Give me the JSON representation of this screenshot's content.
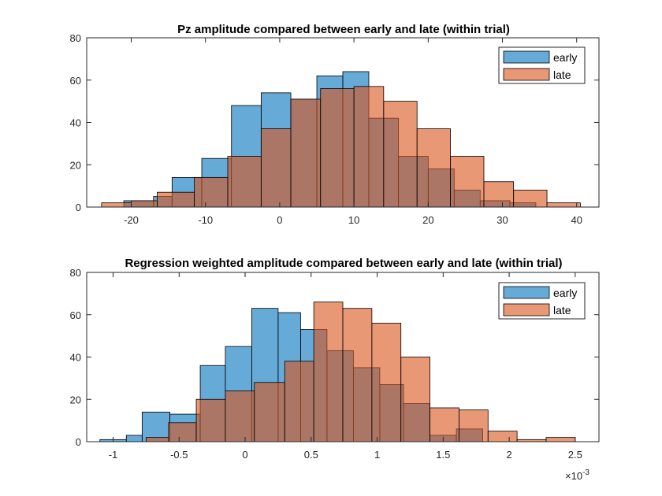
{
  "chart_data": [
    {
      "type": "histogram",
      "title": "Pz amplitude compared between early and late (within trial)",
      "xlim": [
        -26,
        43
      ],
      "ylim": [
        0,
        80
      ],
      "x_ticks": [
        -20,
        -10,
        0,
        10,
        20,
        30,
        40
      ],
      "x_tick_labels": [
        "-20",
        "-10",
        "0",
        "10",
        "20",
        "30",
        "40"
      ],
      "y_ticks": [
        0,
        20,
        40,
        60,
        80
      ],
      "y_tick_labels": [
        "0",
        "20",
        "40",
        "60",
        "80"
      ],
      "exponent_label": "",
      "legend": {
        "position": "top-right",
        "entries": [
          "early",
          "late"
        ]
      },
      "series": [
        {
          "name": "early",
          "color": "#0072BD",
          "bins": [
            {
              "x0": -21.0,
              "x1": -17.0,
              "count": 3
            },
            {
              "x0": -17.0,
              "x1": -14.5,
              "count": 5
            },
            {
              "x0": -14.5,
              "x1": -10.5,
              "count": 14
            },
            {
              "x0": -10.5,
              "x1": -6.5,
              "count": 23
            },
            {
              "x0": -6.5,
              "x1": -2.5,
              "count": 48
            },
            {
              "x0": -2.5,
              "x1": 1.5,
              "count": 54
            },
            {
              "x0": 1.5,
              "x1": 5.0,
              "count": 51
            },
            {
              "x0": 5.0,
              "x1": 8.5,
              "count": 62
            },
            {
              "x0": 8.5,
              "x1": 12.0,
              "count": 64
            },
            {
              "x0": 12.0,
              "x1": 16.0,
              "count": 42
            },
            {
              "x0": 16.0,
              "x1": 20.0,
              "count": 24
            },
            {
              "x0": 20.0,
              "x1": 23.5,
              "count": 18
            },
            {
              "x0": 23.5,
              "x1": 27.0,
              "count": 8
            },
            {
              "x0": 27.0,
              "x1": 31.0,
              "count": 3
            },
            {
              "x0": 31.0,
              "x1": 34.5,
              "count": 2
            }
          ]
        },
        {
          "name": "late",
          "color": "#D95319",
          "bins": [
            {
              "x0": -24.0,
              "x1": -20.0,
              "count": 2
            },
            {
              "x0": -20.0,
              "x1": -16.5,
              "count": 3
            },
            {
              "x0": -16.5,
              "x1": -11.5,
              "count": 7
            },
            {
              "x0": -11.5,
              "x1": -7.0,
              "count": 14
            },
            {
              "x0": -7.0,
              "x1": -2.5,
              "count": 24
            },
            {
              "x0": -2.5,
              "x1": 1.5,
              "count": 37
            },
            {
              "x0": 1.5,
              "x1": 5.5,
              "count": 51
            },
            {
              "x0": 5.5,
              "x1": 10.0,
              "count": 56
            },
            {
              "x0": 10.0,
              "x1": 14.0,
              "count": 57
            },
            {
              "x0": 14.0,
              "x1": 18.5,
              "count": 50
            },
            {
              "x0": 18.5,
              "x1": 23.0,
              "count": 37
            },
            {
              "x0": 23.0,
              "x1": 27.5,
              "count": 24
            },
            {
              "x0": 27.5,
              "x1": 31.5,
              "count": 12
            },
            {
              "x0": 31.5,
              "x1": 36.0,
              "count": 8
            },
            {
              "x0": 36.0,
              "x1": 40.5,
              "count": 2
            }
          ]
        }
      ]
    },
    {
      "type": "histogram",
      "title": "Regression weighted amplitude compared between early and late (within trial)",
      "xlim": [
        -1.2,
        2.68
      ],
      "ylim": [
        0,
        80
      ],
      "x_ticks": [
        -1,
        -0.5,
        0,
        0.5,
        1,
        1.5,
        2,
        2.5
      ],
      "x_tick_labels": [
        "-1",
        "-0.5",
        "0",
        "0.5",
        "1",
        "1.5",
        "2",
        "2.5"
      ],
      "y_ticks": [
        0,
        20,
        40,
        60,
        80
      ],
      "y_tick_labels": [
        "0",
        "20",
        "40",
        "60",
        "80"
      ],
      "exponent_label": "×10",
      "exponent_power": "-3",
      "legend": {
        "position": "top-right",
        "entries": [
          "early",
          "late"
        ]
      },
      "series": [
        {
          "name": "early",
          "color": "#0072BD",
          "bins": [
            {
              "x0": -1.1,
              "x1": -0.9,
              "count": 1
            },
            {
              "x0": -0.9,
              "x1": -0.78,
              "count": 3
            },
            {
              "x0": -0.78,
              "x1": -0.57,
              "count": 14
            },
            {
              "x0": -0.57,
              "x1": -0.34,
              "count": 13
            },
            {
              "x0": -0.34,
              "x1": -0.15,
              "count": 36
            },
            {
              "x0": -0.15,
              "x1": 0.05,
              "count": 45
            },
            {
              "x0": 0.05,
              "x1": 0.25,
              "count": 63
            },
            {
              "x0": 0.25,
              "x1": 0.42,
              "count": 61
            },
            {
              "x0": 0.42,
              "x1": 0.62,
              "count": 53
            },
            {
              "x0": 0.62,
              "x1": 0.82,
              "count": 43
            },
            {
              "x0": 0.82,
              "x1": 1.02,
              "count": 35
            },
            {
              "x0": 1.02,
              "x1": 1.2,
              "count": 27
            },
            {
              "x0": 1.2,
              "x1": 1.4,
              "count": 18
            },
            {
              "x0": 1.4,
              "x1": 1.6,
              "count": 3
            },
            {
              "x0": 1.6,
              "x1": 1.8,
              "count": 6
            }
          ]
        },
        {
          "name": "late",
          "color": "#D95319",
          "bins": [
            {
              "x0": -0.75,
              "x1": -0.58,
              "count": 2
            },
            {
              "x0": -0.58,
              "x1": -0.37,
              "count": 9
            },
            {
              "x0": -0.37,
              "x1": -0.15,
              "count": 20
            },
            {
              "x0": -0.15,
              "x1": 0.07,
              "count": 24
            },
            {
              "x0": 0.07,
              "x1": 0.3,
              "count": 28
            },
            {
              "x0": 0.3,
              "x1": 0.52,
              "count": 38
            },
            {
              "x0": 0.52,
              "x1": 0.74,
              "count": 66
            },
            {
              "x0": 0.74,
              "x1": 0.96,
              "count": 63
            },
            {
              "x0": 0.96,
              "x1": 1.18,
              "count": 56
            },
            {
              "x0": 1.18,
              "x1": 1.4,
              "count": 40
            },
            {
              "x0": 1.4,
              "x1": 1.62,
              "count": 16
            },
            {
              "x0": 1.62,
              "x1": 1.84,
              "count": 15
            },
            {
              "x0": 1.84,
              "x1": 2.06,
              "count": 5
            },
            {
              "x0": 2.06,
              "x1": 2.28,
              "count": 1
            },
            {
              "x0": 2.28,
              "x1": 2.5,
              "count": 2
            }
          ]
        }
      ]
    }
  ]
}
